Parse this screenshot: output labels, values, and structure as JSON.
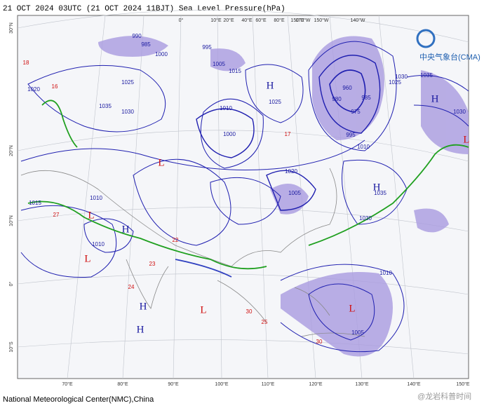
{
  "header": {
    "title": "21 OCT 2024 03UTC  (21 OCT 2024 11BJT) Sea Level Pressure(hPa)",
    "logo": "中央气象台(CMA)"
  },
  "footer": {
    "credit": "National Meteorological Center(NMC),China",
    "watermark": "@龙岩科普时间"
  },
  "axes": {
    "bottom": [
      "70°E",
      "80°E",
      "90°E",
      "100°E",
      "110°E",
      "120°E",
      "130°E",
      "140°E",
      "150°E"
    ],
    "left": [
      "30°N",
      "20°N",
      "10°N",
      "0°",
      "10°S"
    ],
    "top": [
      "0°",
      "10°E",
      "20°E",
      "40°E",
      "60°E",
      "80°E",
      "150°E",
      "170°W",
      "150°W",
      "140°W"
    ]
  },
  "isobar_labels": [
    "990",
    "985",
    "995",
    "1000",
    "1005",
    "1015",
    "1025",
    "1030",
    "1035",
    "1020",
    "1010",
    "1000",
    "1005",
    "1020",
    "1025",
    "960",
    "980",
    "975",
    "985",
    "995",
    "1010",
    "1030",
    "1035",
    "1030",
    "1025",
    "1035",
    "1030",
    "1010",
    "1005",
    "1010",
    "1010",
    "1015"
  ],
  "pressure_centers": [
    "H",
    "H",
    "H",
    "H",
    "H",
    "H",
    "L",
    "L",
    "L",
    "L",
    "L",
    "L"
  ],
  "station_labels": [
    "18",
    "16",
    "27",
    "17",
    "30",
    "30",
    "24",
    "25",
    "23",
    "22"
  ]
}
